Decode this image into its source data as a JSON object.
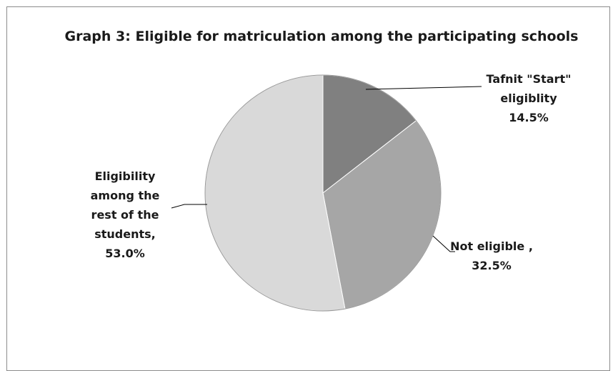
{
  "chart_data": {
    "type": "pie",
    "title": "Graph 3: Eligible for matriculation among the participating schools",
    "slices": [
      {
        "label": "Tafnit \"Start\" eligiblity",
        "value": 14.5,
        "display": "14.5%",
        "label_lines": [
          "Tafnit \"Start\"",
          "eligiblity",
          "14.5%"
        ],
        "color": "#808080"
      },
      {
        "label": "Not eligible ,",
        "value": 32.5,
        "display": "32.5%",
        "label_lines": [
          "Not eligible ,",
          "32.5%"
        ],
        "color": "#a6a6a6"
      },
      {
        "label": "Eligibility among the rest of the students,",
        "value": 53.0,
        "display": "53.0%",
        "label_lines": [
          "Eligibility",
          "among the",
          "rest of the",
          "students,",
          "53.0%"
        ],
        "color": "#d9d9d9"
      }
    ],
    "start_angle": "12 o'clock",
    "direction": "clockwise",
    "legend": "none",
    "border_color": "#8c8c8c"
  }
}
